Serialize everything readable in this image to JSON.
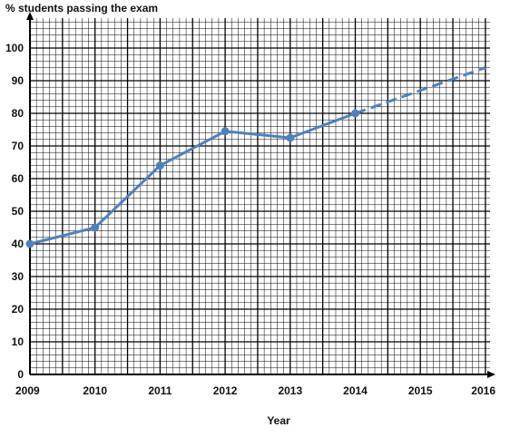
{
  "chart_data": {
    "type": "line",
    "ylabel": "% students passing the exam",
    "xlabel": "Year",
    "x_ticks": [
      "2009",
      "2010",
      "2011",
      "2012",
      "2013",
      "2014",
      "2015",
      "2016"
    ],
    "y_ticks": [
      "0",
      "10",
      "20",
      "30",
      "40",
      "50",
      "60",
      "70",
      "80",
      "90",
      "100"
    ],
    "xlim": [
      2009,
      2016
    ],
    "ylim": [
      0,
      100
    ],
    "grid": true,
    "series": [
      {
        "style": "solid",
        "markers": true,
        "x": [
          2009,
          2010,
          2011,
          2012,
          2013,
          2014
        ],
        "y": [
          40,
          45,
          64,
          74.5,
          72.5,
          80
        ]
      },
      {
        "style": "dashed",
        "markers": false,
        "x": [
          2014,
          2016
        ],
        "y": [
          80,
          94
        ]
      }
    ],
    "colors": {
      "line": "#4F81BD",
      "grid": "#000000",
      "text": "#111111"
    }
  }
}
